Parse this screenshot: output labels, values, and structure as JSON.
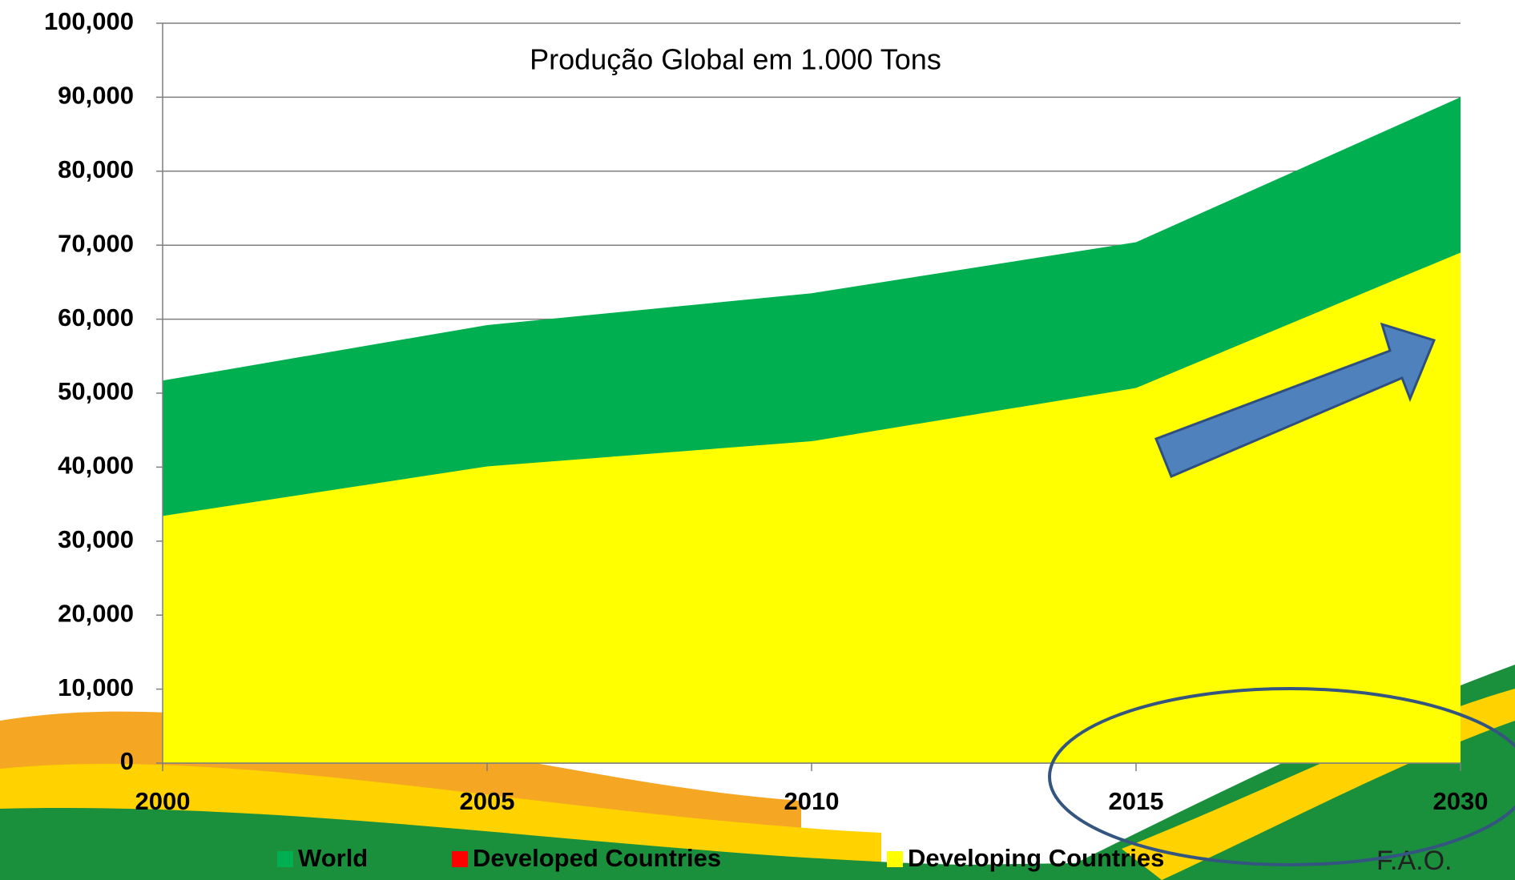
{
  "chart_data": {
    "type": "area",
    "annotations": [
      "Produção Global em 1.000 Tons",
      "F.A.O."
    ],
    "categories": [
      "2000",
      "2005",
      "2010",
      "2015",
      "2030"
    ],
    "series": [
      {
        "name": "World",
        "color": "#00b050",
        "values": [
          51700,
          59200,
          63500,
          70400,
          90000
        ]
      },
      {
        "name": "Developed Countries",
        "color": "#ff0000",
        "values": [
          18300,
          19100,
          20000,
          19700,
          21000
        ]
      },
      {
        "name": "Developing Countries",
        "color": "#ffff00",
        "values": [
          33400,
          40100,
          43500,
          50700,
          69000
        ]
      }
    ],
    "ylim": [
      0,
      100000
    ],
    "yticks": [
      0,
      {
        "value": 10000,
        "label": "10,000"
      },
      {
        "value": 20000,
        "label": "20,000"
      },
      {
        "value": 30000,
        "label": "30,000"
      },
      {
        "value": 40000,
        "label": "40,000"
      },
      {
        "value": 50000,
        "label": "50,000"
      },
      {
        "value": 60000,
        "label": "60,000"
      },
      {
        "value": 70000,
        "label": "70,000"
      },
      {
        "value": 80000,
        "label": "80,000"
      },
      {
        "value": 90000,
        "label": "90,000"
      },
      {
        "value": 100000,
        "label": "100,000"
      }
    ],
    "grid": true
  }
}
